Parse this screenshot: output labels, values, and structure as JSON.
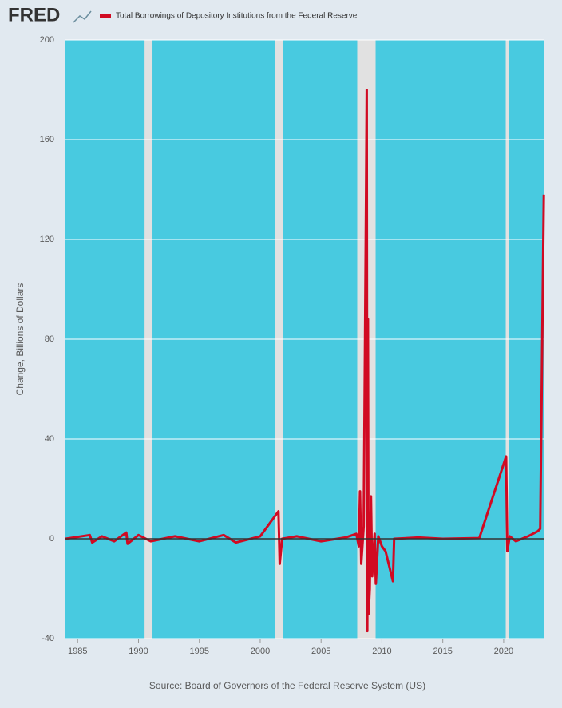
{
  "logo": "FRED",
  "chart_data": {
    "type": "line",
    "title": "Total Borrowings of Depository Institutions from the Federal Reserve",
    "ylabel": "Change, Billions of Dollars",
    "source": "Source: Board of Governors of the Federal Reserve System (US)",
    "xlim": [
      1984,
      2023.35
    ],
    "xticks": [
      1985,
      1990,
      1995,
      2000,
      2005,
      2010,
      2015,
      2020
    ],
    "ylim": [
      -40,
      200
    ],
    "yticks": [
      -40,
      0,
      40,
      80,
      120,
      160,
      200
    ],
    "grid": true,
    "plot_color": "#48cae0",
    "shade_color": "#e1e1e1",
    "shaded_periods": [
      [
        1990.5,
        1991.15
      ],
      [
        2001.2,
        2001.86
      ],
      [
        2007.97,
        2009.48
      ],
      [
        2020.17,
        2020.44
      ]
    ],
    "series": [
      {
        "name": "Total Borrowings of Depository Institutions from the Federal Reserve",
        "color": "#d10a22",
        "x": [
          1984.0,
          1986.0,
          1986.2,
          1987.0,
          1988.0,
          1989.0,
          1989.1,
          1990.0,
          1991.0,
          1993.0,
          1995.0,
          1997.0,
          1998.0,
          2000.0,
          2001.5,
          2001.6,
          2001.8,
          2003.0,
          2005.0,
          2007.0,
          2007.9,
          2008.1,
          2008.2,
          2008.3,
          2008.5,
          2008.7,
          2008.75,
          2008.8,
          2008.85,
          2008.9,
          2009.0,
          2009.1,
          2009.2,
          2009.4,
          2009.5,
          2009.7,
          2010.0,
          2010.3,
          2010.9,
          2011.0,
          2013.0,
          2015.0,
          2018.0,
          2020.2,
          2020.3,
          2020.5,
          2021.0,
          2022.0,
          2022.8,
          2023.0,
          2023.3
        ],
        "values": [
          0,
          1.5,
          -1.5,
          1,
          -1,
          2.5,
          -2,
          1.5,
          -1,
          1,
          -1,
          1.5,
          -1.5,
          1,
          11,
          -10,
          0,
          1,
          -1,
          0.5,
          2,
          -3,
          19,
          -10,
          5,
          140,
          180,
          -37,
          88,
          -30,
          -20,
          17,
          -15,
          2,
          -18,
          1,
          -3,
          -5,
          -17,
          0,
          0.5,
          0,
          0.3,
          33,
          -5,
          1,
          -1,
          1,
          3,
          4,
          138
        ]
      }
    ]
  }
}
